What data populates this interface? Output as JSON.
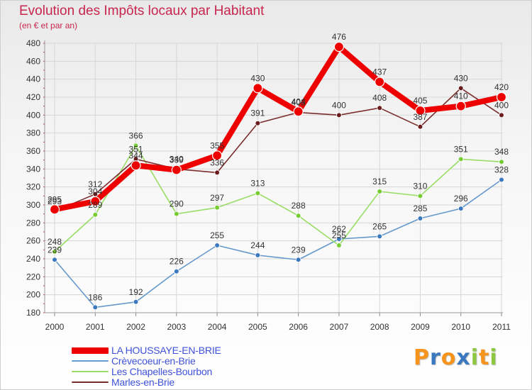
{
  "chart_data": {
    "type": "line",
    "title": "Evolution des Impôts locaux par Habitant",
    "subtitle": "(en € et par an)",
    "xlabel": "",
    "ylabel": "",
    "x": [
      "2000",
      "2001",
      "2002",
      "2003",
      "2004",
      "2005",
      "2006",
      "2007",
      "2008",
      "2009",
      "2010",
      "2011"
    ],
    "ylim": [
      180,
      480
    ],
    "yticks": [
      180,
      200,
      220,
      240,
      260,
      280,
      300,
      320,
      340,
      360,
      380,
      400,
      420,
      440,
      460,
      480
    ],
    "grid": true,
    "legend_position": "bottom-left",
    "series": [
      {
        "name": "Crèvecoeur-en-Brie",
        "color": "#6699cc",
        "point_color": "#3a78c0",
        "values": [
          239,
          186,
          192,
          226,
          255,
          244,
          239,
          262,
          265,
          285,
          296,
          328
        ],
        "labels": [
          "239",
          "186",
          "192",
          "226",
          "255",
          "244",
          "239",
          "262",
          "265",
          "285",
          "296",
          "328"
        ]
      },
      {
        "name": "Les Chapelles-Bourbon",
        "color": "#99dd66",
        "point_color": "#77cc33",
        "values": [
          248,
          289,
          366,
          290,
          297,
          313,
          288,
          255,
          315,
          310,
          351,
          348
        ],
        "labels": [
          "248",
          "289",
          "366",
          "290",
          "297",
          "313",
          "288",
          "255",
          "315",
          "310",
          "351",
          "348"
        ]
      },
      {
        "name": "Marles-en-Brie",
        "color": "#7a2d2d",
        "point_color": "#6a1c1c",
        "values": [
          293,
          312,
          351,
          340,
          336,
          391,
          403,
          400,
          408,
          387,
          430,
          400
        ],
        "labels": [
          "293",
          "312",
          "351",
          "340",
          "336",
          "391",
          "403",
          "400",
          "408",
          "387",
          "430",
          "400"
        ]
      },
      {
        "name": "LA HOUSSAYE-EN-BRIE",
        "color": "#ee0000",
        "point_color": "#ee0000",
        "values": [
          295,
          304,
          344,
          339,
          355,
          430,
          404,
          476,
          437,
          405,
          410,
          420
        ],
        "labels": [
          "295",
          "304",
          "344",
          "339",
          "355",
          "430",
          "404",
          "476",
          "437",
          "405",
          "410",
          "420"
        ]
      }
    ]
  },
  "legend": {
    "items": [
      {
        "name": "LA HOUSSAYE-EN-BRIE",
        "color": "#ee0000",
        "thickness": "thick"
      },
      {
        "name": "Crèvecoeur-en-Brie",
        "color": "#6699cc",
        "thickness": "thin"
      },
      {
        "name": "Les Chapelles-Bourbon",
        "color": "#99dd66",
        "thickness": "thin"
      },
      {
        "name": "Marles-en-Brie",
        "color": "#7a2d2d",
        "thickness": "thin"
      }
    ]
  },
  "brand": {
    "letters": [
      "P",
      "r",
      "o",
      "x",
      "i",
      "t",
      "i"
    ],
    "colors": [
      "#f7941d",
      "#3a78c0",
      "#f7941d",
      "#3a78c0",
      "#8dc63f",
      "#f7941d",
      "#8dc63f"
    ]
  }
}
